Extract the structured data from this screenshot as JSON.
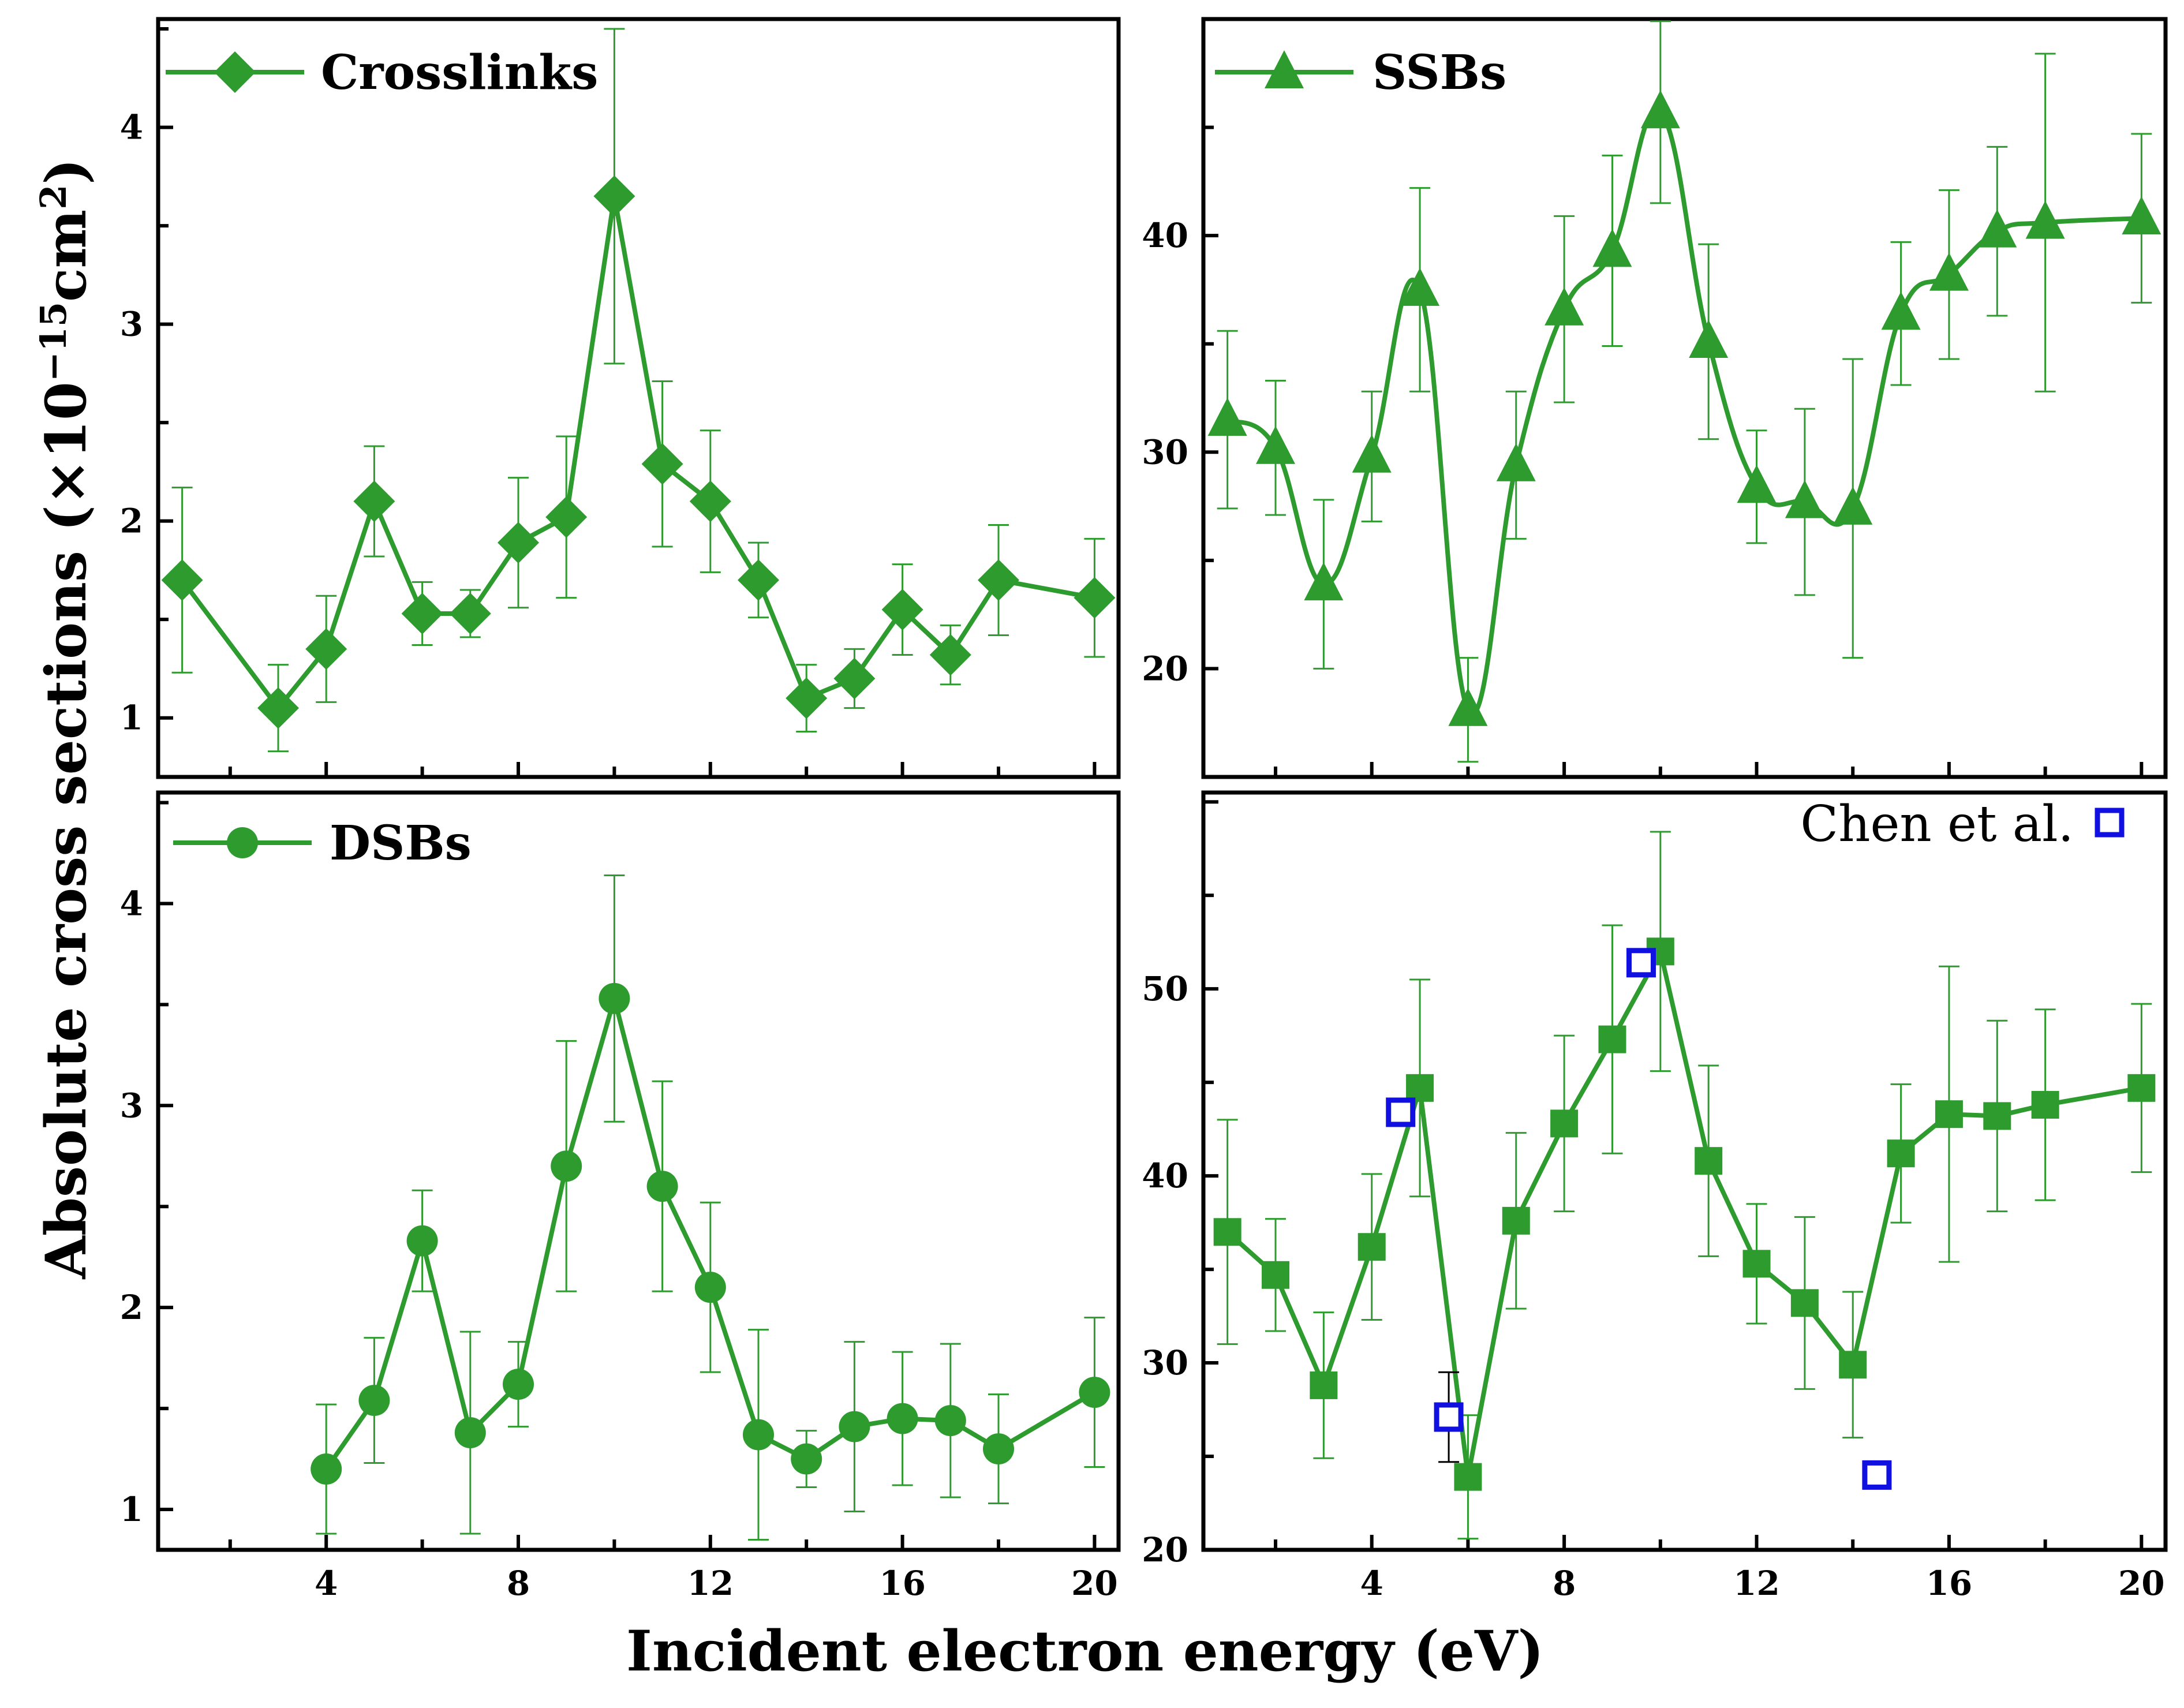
{
  "colors": {
    "series": "#2e9b2e",
    "reference": "#1010e0",
    "axis": "#000000"
  },
  "figure": {
    "xlabel": "Incident electron energy (eV)",
    "ylabel_prefix": "Absolute cross sections (×10",
    "ylabel_exp": "−15",
    "ylabel_unit": "cm",
    "ylabel_unit_exp": "2",
    "ylabel_suffix": ")"
  },
  "chart_data": [
    {
      "type": "line",
      "title": "Crosslinks",
      "marker": "diamond",
      "smooth": false,
      "xlim": [
        0.5,
        20.5
      ],
      "ylim": [
        0.7,
        4.55
      ],
      "yticks": [
        1,
        2,
        3,
        4
      ],
      "ytick_labels": [
        "1",
        "2",
        "3",
        "4"
      ],
      "xticks": [],
      "xtick_labels": [],
      "series": [
        {
          "name": "Crosslinks",
          "x": [
            1,
            3,
            4,
            5,
            6,
            7,
            8,
            9,
            10,
            11,
            12,
            13,
            14,
            15,
            16,
            17,
            18,
            20
          ],
          "y": [
            1.7,
            1.05,
            1.35,
            2.1,
            1.53,
            1.53,
            1.89,
            2.02,
            3.65,
            2.29,
            2.1,
            1.7,
            1.1,
            1.2,
            1.55,
            1.32,
            1.7,
            1.61
          ],
          "yerr": [
            0.47,
            0.22,
            0.27,
            0.28,
            0.16,
            0.12,
            0.33,
            0.41,
            0.85,
            0.42,
            0.36,
            0.19,
            0.17,
            0.15,
            0.23,
            0.15,
            0.28,
            0.3
          ]
        }
      ]
    },
    {
      "type": "line",
      "title": "SSBs",
      "marker": "triangle",
      "smooth": true,
      "xlim": [
        0.5,
        20.5
      ],
      "ylim": [
        15,
        50
      ],
      "yticks": [
        20,
        30,
        40
      ],
      "ytick_labels": [
        "20",
        "30",
        "40"
      ],
      "xticks": [],
      "xtick_labels": [],
      "series": [
        {
          "name": "SSBs",
          "x": [
            1,
            2,
            3,
            4,
            5,
            6,
            7,
            8,
            9,
            10,
            11,
            12,
            13,
            14,
            15,
            16,
            17,
            18,
            20
          ],
          "y": [
            31.5,
            30.2,
            23.9,
            29.8,
            37.5,
            18.1,
            29.4,
            36.6,
            39.3,
            45.7,
            35.1,
            28.4,
            27.7,
            27.4,
            36.4,
            38.2,
            40.2,
            40.6,
            40.8
          ],
          "yerr": [
            4.1,
            3.1,
            3.9,
            3.0,
            4.7,
            2.4,
            3.4,
            4.3,
            4.4,
            4.2,
            4.5,
            2.6,
            4.3,
            6.9,
            3.3,
            3.9,
            3.9,
            7.8,
            3.9
          ]
        }
      ]
    },
    {
      "type": "line",
      "title": "DSBs",
      "marker": "circle",
      "smooth": false,
      "xlim": [
        0.5,
        20.5
      ],
      "ylim": [
        0.8,
        4.55
      ],
      "yticks": [
        1,
        2,
        3,
        4
      ],
      "ytick_labels": [
        "1",
        "2",
        "3",
        "4"
      ],
      "xticks": [
        4,
        8,
        12,
        16,
        20
      ],
      "xtick_labels": [
        "4",
        "8",
        "12",
        "16",
        "20"
      ],
      "series": [
        {
          "name": "DSBs",
          "x": [
            4,
            5,
            6,
            7,
            8,
            9,
            10,
            11,
            12,
            13,
            14,
            15,
            16,
            17,
            18,
            20
          ],
          "y": [
            1.2,
            1.54,
            2.33,
            1.38,
            1.62,
            2.7,
            3.53,
            2.6,
            2.1,
            1.37,
            1.25,
            1.41,
            1.45,
            1.44,
            1.3,
            1.58
          ],
          "yerr": [
            0.32,
            0.31,
            0.25,
            0.5,
            0.21,
            0.62,
            0.61,
            0.52,
            0.42,
            0.52,
            0.14,
            0.42,
            0.33,
            0.38,
            0.27,
            0.37
          ]
        }
      ]
    },
    {
      "type": "line",
      "title": "",
      "marker": "square",
      "smooth": false,
      "xlim": [
        0.5,
        20.5
      ],
      "ylim": [
        20,
        60.5
      ],
      "yticks": [
        20,
        30,
        40,
        50
      ],
      "ytick_labels": [
        "20",
        "30",
        "40",
        "50"
      ],
      "xticks": [
        4,
        8,
        12,
        16,
        20
      ],
      "xtick_labels": [
        "4",
        "8",
        "12",
        "16",
        "20"
      ],
      "series": [
        {
          "name": "",
          "x": [
            1,
            2,
            3,
            4,
            5,
            6,
            7,
            8,
            9,
            10,
            11,
            12,
            13,
            14,
            15,
            16,
            17,
            18,
            20
          ],
          "y": [
            37.0,
            34.7,
            28.8,
            36.2,
            44.7,
            23.9,
            37.6,
            42.8,
            47.3,
            52.0,
            40.8,
            35.3,
            33.2,
            29.9,
            41.2,
            43.3,
            43.2,
            43.8,
            44.7
          ],
          "yerr": [
            6.0,
            3.0,
            3.9,
            3.9,
            5.8,
            3.3,
            4.7,
            4.7,
            6.1,
            6.4,
            5.1,
            3.2,
            4.6,
            3.9,
            3.7,
            7.9,
            5.1,
            5.1,
            4.5
          ]
        },
        {
          "name": "Chen et al.",
          "x": [
            4.6,
            5.6,
            9.6,
            14.5
          ],
          "y": [
            43.4,
            27.1,
            51.4,
            24.0
          ],
          "yerr": [
            0.7,
            2.4,
            0.4,
            0.6
          ]
        }
      ]
    }
  ]
}
